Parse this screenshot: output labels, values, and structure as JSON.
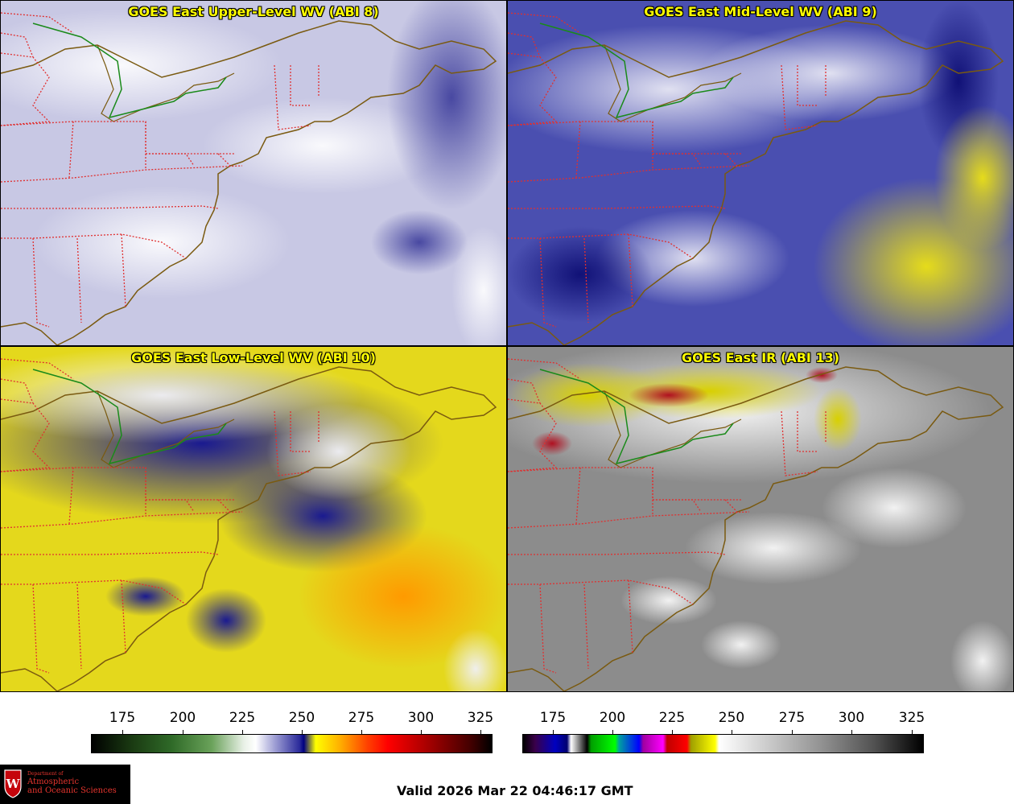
{
  "panels": [
    {
      "title": "GOES East Upper-Level WV (ABI 8)"
    },
    {
      "title": "GOES East Mid-Level WV (ABI 9)"
    },
    {
      "title": "GOES East Low-Level WV (ABI 10)"
    },
    {
      "title": "GOES East IR (ABI 13)"
    }
  ],
  "colorbars": [
    {
      "ticks": [
        "175",
        "200",
        "225",
        "250",
        "275",
        "300",
        "325"
      ]
    },
    {
      "ticks": [
        "175",
        "200",
        "225",
        "250",
        "275",
        "300",
        "325"
      ]
    }
  ],
  "logo": {
    "line1": "Department of",
    "line2": "Atmospheric",
    "line3": "and Oceanic Sciences",
    "shield_letter": "W"
  },
  "valid_time": "Valid 2026 Mar 22 04:46:17 GMT",
  "colors": {
    "title_text": "#ffff00",
    "state_borders": "#e03030",
    "coastline": "#7a5a10",
    "canada_border": "#1a8a1a"
  }
}
